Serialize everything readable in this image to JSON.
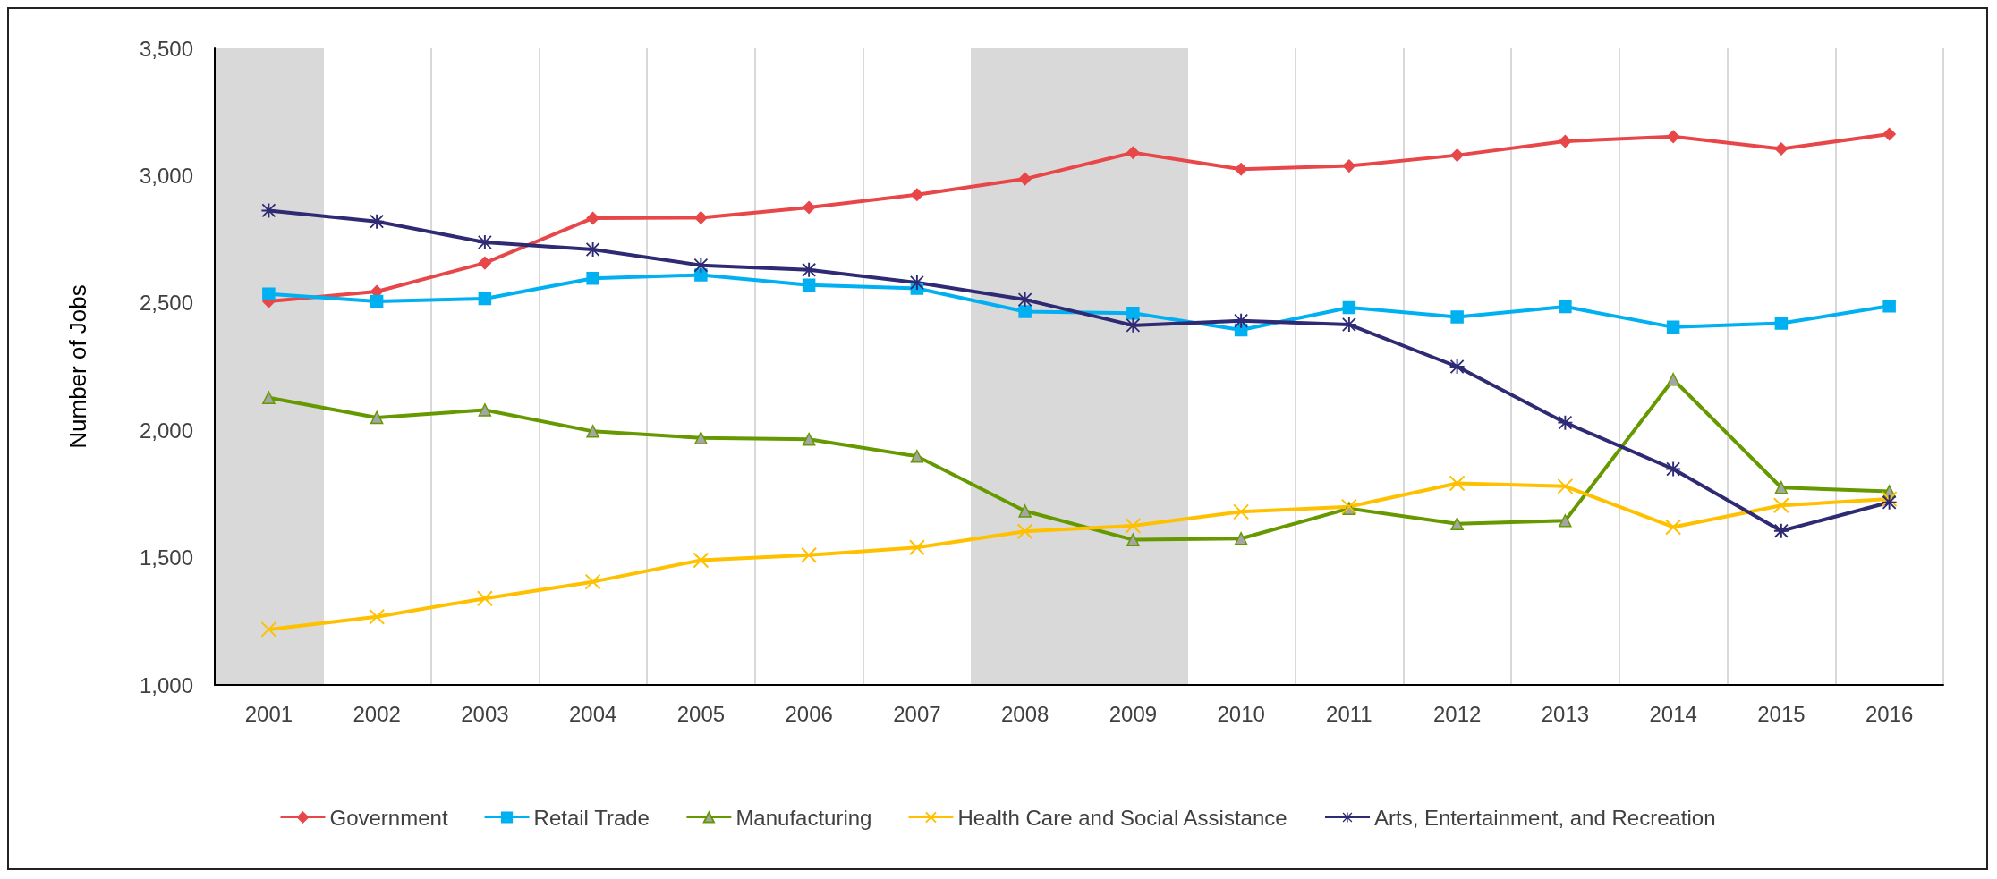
{
  "chart_data": {
    "type": "line",
    "ylabel": "Number of Jobs",
    "categories": [
      "2001",
      "2002",
      "2003",
      "2004",
      "2005",
      "2006",
      "2007",
      "2008",
      "2009",
      "2010",
      "2011",
      "2012",
      "2013",
      "2014",
      "2015",
      "2016"
    ],
    "ylim": [
      1000,
      3500
    ],
    "yticks": [
      {
        "value": 1000,
        "label": "1,000"
      },
      {
        "value": 1500,
        "label": "1,500"
      },
      {
        "value": 2000,
        "label": "2,000"
      },
      {
        "value": 2500,
        "label": "2,500"
      },
      {
        "value": 3000,
        "label": "3,000"
      },
      {
        "value": 3500,
        "label": "3,500"
      }
    ],
    "grid": "x",
    "legend": "bottom",
    "bands": [
      {
        "axis": "x",
        "from": "2001",
        "to": "2001",
        "color": "#d9d9d9"
      },
      {
        "axis": "x",
        "from": "2008",
        "to": "2009",
        "color": "#d9d9d9"
      }
    ],
    "series": [
      {
        "name": "Government",
        "color": "#e84749",
        "marker": "diamond",
        "values": [
          2506,
          2545,
          2657,
          2833,
          2835,
          2875,
          2925,
          2987,
          3090,
          3025,
          3038,
          3080,
          3135,
          3153,
          3105,
          3163
        ]
      },
      {
        "name": "Retail Trade",
        "color": "#00b0f0",
        "marker": "square",
        "values": [
          2535,
          2506,
          2517,
          2597,
          2610,
          2570,
          2557,
          2466,
          2460,
          2394,
          2482,
          2445,
          2485,
          2405,
          2420,
          2488
        ]
      },
      {
        "name": "Manufacturing",
        "color": "#669900",
        "marker": "triangle",
        "values": [
          2128,
          2050,
          2080,
          1996,
          1970,
          1965,
          1898,
          1683,
          1570,
          1575,
          1693,
          1633,
          1645,
          2200,
          1775,
          1760
        ]
      },
      {
        "name": "Health Care and Social Assistance",
        "color": "#ffc000",
        "marker": "cross",
        "values": [
          1218,
          1268,
          1340,
          1405,
          1490,
          1510,
          1540,
          1603,
          1625,
          1680,
          1700,
          1792,
          1780,
          1620,
          1705,
          1730
        ]
      },
      {
        "name": "Arts, Entertainment, and Recreation",
        "color": "#2e2a73",
        "marker": "star",
        "values": [
          2863,
          2820,
          2738,
          2710,
          2648,
          2630,
          2580,
          2513,
          2412,
          2430,
          2415,
          2250,
          2030,
          1848,
          1605,
          1717
        ]
      }
    ]
  }
}
